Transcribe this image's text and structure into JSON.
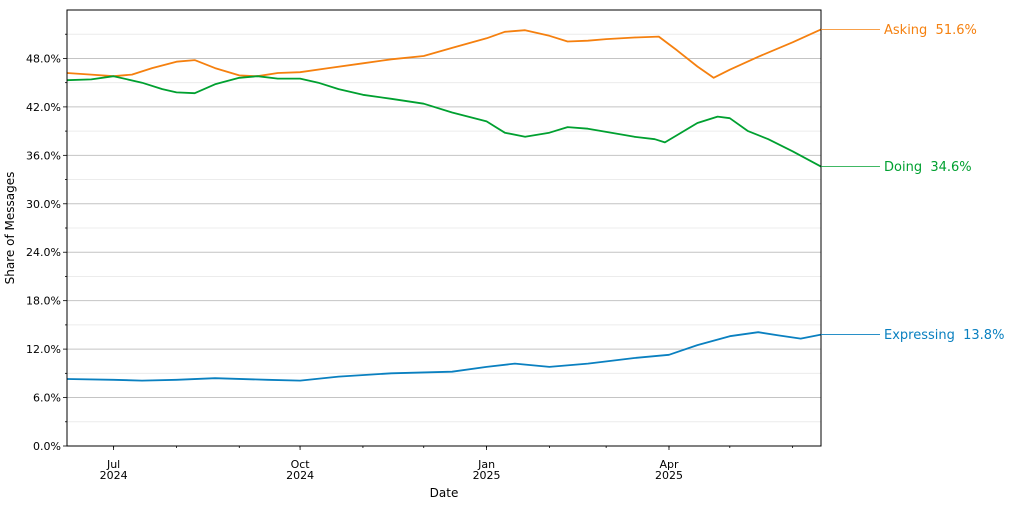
{
  "chart_data": {
    "type": "line",
    "xlabel": "Date",
    "ylabel": "Share of Messages",
    "x_range": [
      "2024-06-08",
      "2025-06-15"
    ],
    "ylim": [
      0,
      54
    ],
    "y_ticks": [
      0,
      6,
      12,
      18,
      24,
      30,
      36,
      42,
      48
    ],
    "y_tick_labels": [
      "0.0%",
      "6.0%",
      "12.0%",
      "18.0%",
      "24.0%",
      "30.0%",
      "36.0%",
      "42.0%",
      "48.0%"
    ],
    "x_ticks": [
      {
        "date": "2024-07-01",
        "label": "Jul",
        "year": "2024"
      },
      {
        "date": "2024-10-01",
        "label": "Oct",
        "year": "2024"
      },
      {
        "date": "2025-01-01",
        "label": "Jan",
        "year": "2025"
      },
      {
        "date": "2025-04-01",
        "label": "Apr",
        "year": "2025"
      }
    ],
    "grid": {
      "major_y": true,
      "minor_y": true
    },
    "series": [
      {
        "name": "Asking",
        "color": "#f5800f",
        "end_value": 51.6,
        "end_label": "51.6%",
        "points": [
          [
            "2024-06-08",
            46.2
          ],
          [
            "2024-06-20",
            46.0
          ],
          [
            "2024-07-01",
            45.8
          ],
          [
            "2024-07-10",
            46.0
          ],
          [
            "2024-07-20",
            46.8
          ],
          [
            "2024-08-01",
            47.6
          ],
          [
            "2024-08-10",
            47.8
          ],
          [
            "2024-08-20",
            46.8
          ],
          [
            "2024-09-01",
            45.9
          ],
          [
            "2024-09-10",
            45.8
          ],
          [
            "2024-09-20",
            46.2
          ],
          [
            "2024-10-01",
            46.3
          ],
          [
            "2024-10-15",
            46.8
          ],
          [
            "2024-11-01",
            47.4
          ],
          [
            "2024-11-15",
            47.9
          ],
          [
            "2024-12-01",
            48.3
          ],
          [
            "2024-12-15",
            49.3
          ],
          [
            "2025-01-01",
            50.5
          ],
          [
            "2025-01-10",
            51.3
          ],
          [
            "2025-01-20",
            51.5
          ],
          [
            "2025-02-01",
            50.8
          ],
          [
            "2025-02-10",
            50.1
          ],
          [
            "2025-02-20",
            50.2
          ],
          [
            "2025-03-01",
            50.4
          ],
          [
            "2025-03-15",
            50.6
          ],
          [
            "2025-03-27",
            50.7
          ],
          [
            "2025-04-05",
            49.0
          ],
          [
            "2025-04-15",
            47.0
          ],
          [
            "2025-04-23",
            45.6
          ],
          [
            "2025-05-01",
            46.6
          ],
          [
            "2025-05-15",
            48.2
          ],
          [
            "2025-06-01",
            50.0
          ],
          [
            "2025-06-15",
            51.6
          ]
        ]
      },
      {
        "name": "Doing",
        "color": "#00a030",
        "end_value": 34.6,
        "end_label": "34.6%",
        "points": [
          [
            "2024-06-08",
            45.3
          ],
          [
            "2024-06-20",
            45.4
          ],
          [
            "2024-07-01",
            45.8
          ],
          [
            "2024-07-15",
            45.0
          ],
          [
            "2024-07-25",
            44.2
          ],
          [
            "2024-08-01",
            43.8
          ],
          [
            "2024-08-10",
            43.7
          ],
          [
            "2024-08-20",
            44.8
          ],
          [
            "2024-09-01",
            45.6
          ],
          [
            "2024-09-10",
            45.8
          ],
          [
            "2024-09-20",
            45.5
          ],
          [
            "2024-10-01",
            45.5
          ],
          [
            "2024-10-10",
            45.0
          ],
          [
            "2024-10-20",
            44.2
          ],
          [
            "2024-11-01",
            43.5
          ],
          [
            "2024-11-15",
            43.0
          ],
          [
            "2024-12-01",
            42.4
          ],
          [
            "2024-12-15",
            41.3
          ],
          [
            "2025-01-01",
            40.2
          ],
          [
            "2025-01-10",
            38.8
          ],
          [
            "2025-01-20",
            38.3
          ],
          [
            "2025-02-01",
            38.8
          ],
          [
            "2025-02-10",
            39.5
          ],
          [
            "2025-02-20",
            39.3
          ],
          [
            "2025-03-01",
            38.9
          ],
          [
            "2025-03-15",
            38.3
          ],
          [
            "2025-03-25",
            38.0
          ],
          [
            "2025-03-30",
            37.6
          ],
          [
            "2025-04-05",
            38.5
          ],
          [
            "2025-04-15",
            40.0
          ],
          [
            "2025-04-25",
            40.8
          ],
          [
            "2025-05-01",
            40.6
          ],
          [
            "2025-05-10",
            39.0
          ],
          [
            "2025-05-20",
            38.0
          ],
          [
            "2025-06-01",
            36.5
          ],
          [
            "2025-06-15",
            34.6
          ]
        ]
      },
      {
        "name": "Expressing",
        "color": "#0a80c0",
        "end_value": 13.8,
        "end_label": "13.8%",
        "points": [
          [
            "2024-06-08",
            8.3
          ],
          [
            "2024-07-01",
            8.2
          ],
          [
            "2024-07-15",
            8.1
          ],
          [
            "2024-08-01",
            8.2
          ],
          [
            "2024-08-20",
            8.4
          ],
          [
            "2024-09-15",
            8.2
          ],
          [
            "2024-10-01",
            8.1
          ],
          [
            "2024-10-20",
            8.6
          ],
          [
            "2024-11-15",
            9.0
          ],
          [
            "2024-12-15",
            9.2
          ],
          [
            "2025-01-01",
            9.8
          ],
          [
            "2025-01-15",
            10.2
          ],
          [
            "2025-02-01",
            9.8
          ],
          [
            "2025-02-20",
            10.2
          ],
          [
            "2025-03-15",
            10.9
          ],
          [
            "2025-04-01",
            11.3
          ],
          [
            "2025-04-15",
            12.5
          ],
          [
            "2025-05-01",
            13.6
          ],
          [
            "2025-05-15",
            14.1
          ],
          [
            "2025-05-25",
            13.7
          ],
          [
            "2025-06-05",
            13.3
          ],
          [
            "2025-06-15",
            13.8
          ]
        ]
      }
    ]
  }
}
